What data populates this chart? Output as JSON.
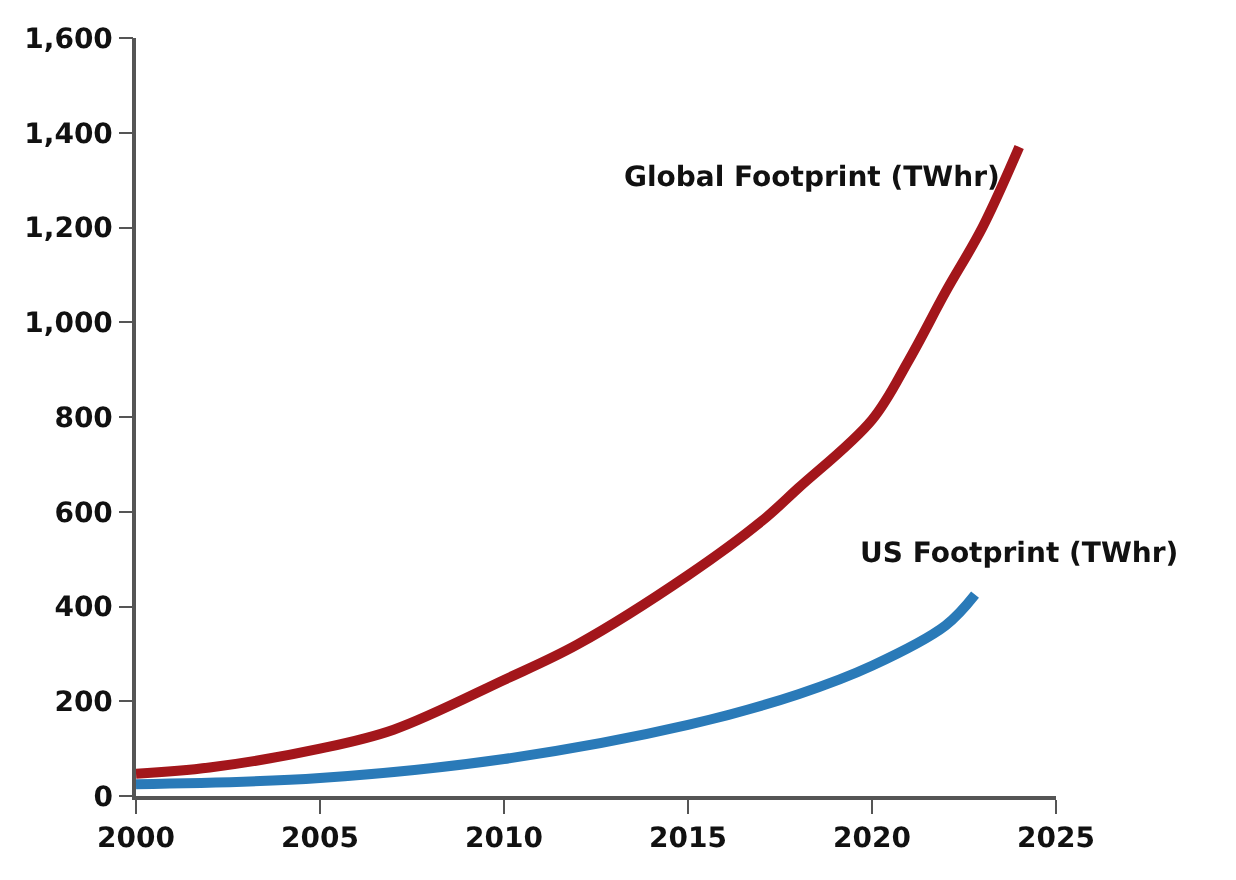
{
  "chart_data": {
    "type": "line",
    "xlim": [
      2000,
      2025
    ],
    "xticks": [
      2000,
      2005,
      2010,
      2015,
      2020,
      2025
    ],
    "ylim": [
      0,
      1600
    ],
    "yticks": [
      0,
      200,
      400,
      600,
      800,
      {
        "value": 1000,
        "label": "1,000"
      },
      {
        "value": 1200,
        "label": "1,200"
      },
      {
        "value": 1400,
        "label": "1,400"
      },
      {
        "value": 1600,
        "label": "1,600"
      }
    ],
    "legend": false,
    "marker": "none",
    "line_style": "solid",
    "series": [
      {
        "name": "Global Footprint (TWhr)",
        "color": "#a3161b",
        "x": [
          2000,
          2002,
          2005,
          2007,
          2010,
          2012,
          2015,
          2017,
          2018,
          2020,
          2021,
          2022,
          2023,
          2024
        ],
        "values": [
          47,
          60,
          100,
          140,
          245,
          320,
          466,
          580,
          650,
          794,
          920,
          1064,
          1200,
          1370
        ]
      },
      {
        "name": "US Footprint (TWhr)",
        "color": "#2a7ab8",
        "x": [
          2000,
          2005,
          2010,
          2015,
          2018,
          2020,
          2022,
          2022.8
        ],
        "values": [
          25,
          38,
          78,
          150,
          215,
          275,
          360,
          425
        ]
      }
    ]
  }
}
